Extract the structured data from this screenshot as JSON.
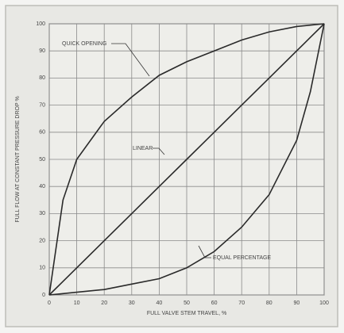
{
  "chart_data": {
    "type": "line",
    "xlabel": "FULL VALVE STEM TRAVEL, %",
    "ylabel": "FULL FLOW AT CONSTANT PRESSURE DROP %",
    "x": [
      0,
      5,
      10,
      20,
      30,
      40,
      50,
      60,
      70,
      80,
      90,
      95,
      100
    ],
    "series": [
      {
        "name": "QUICK OPENING",
        "color": "#2a2a2a",
        "values": [
          0,
          35,
          50,
          64,
          73,
          81,
          86,
          90,
          94,
          97,
          99,
          99.5,
          100
        ]
      },
      {
        "name": "LINEAR",
        "color": "#2a2a2a",
        "values": [
          0,
          5,
          10,
          20,
          30,
          40,
          50,
          60,
          70,
          80,
          90,
          95,
          100
        ]
      },
      {
        "name": "EQUAL PERCENTAGE",
        "color": "#2a2a2a",
        "values": [
          0,
          0.5,
          1,
          2,
          4,
          6,
          10,
          16,
          25,
          37,
          57,
          75,
          100
        ]
      }
    ],
    "xlim": [
      0,
      100
    ],
    "xticks": [
      0,
      10,
      20,
      30,
      40,
      50,
      60,
      70,
      80,
      90,
      100
    ],
    "ylim": [
      0,
      100
    ],
    "yticks": [
      0,
      10,
      20,
      30,
      40,
      50,
      60,
      70,
      80,
      90,
      100
    ],
    "grid": true
  }
}
